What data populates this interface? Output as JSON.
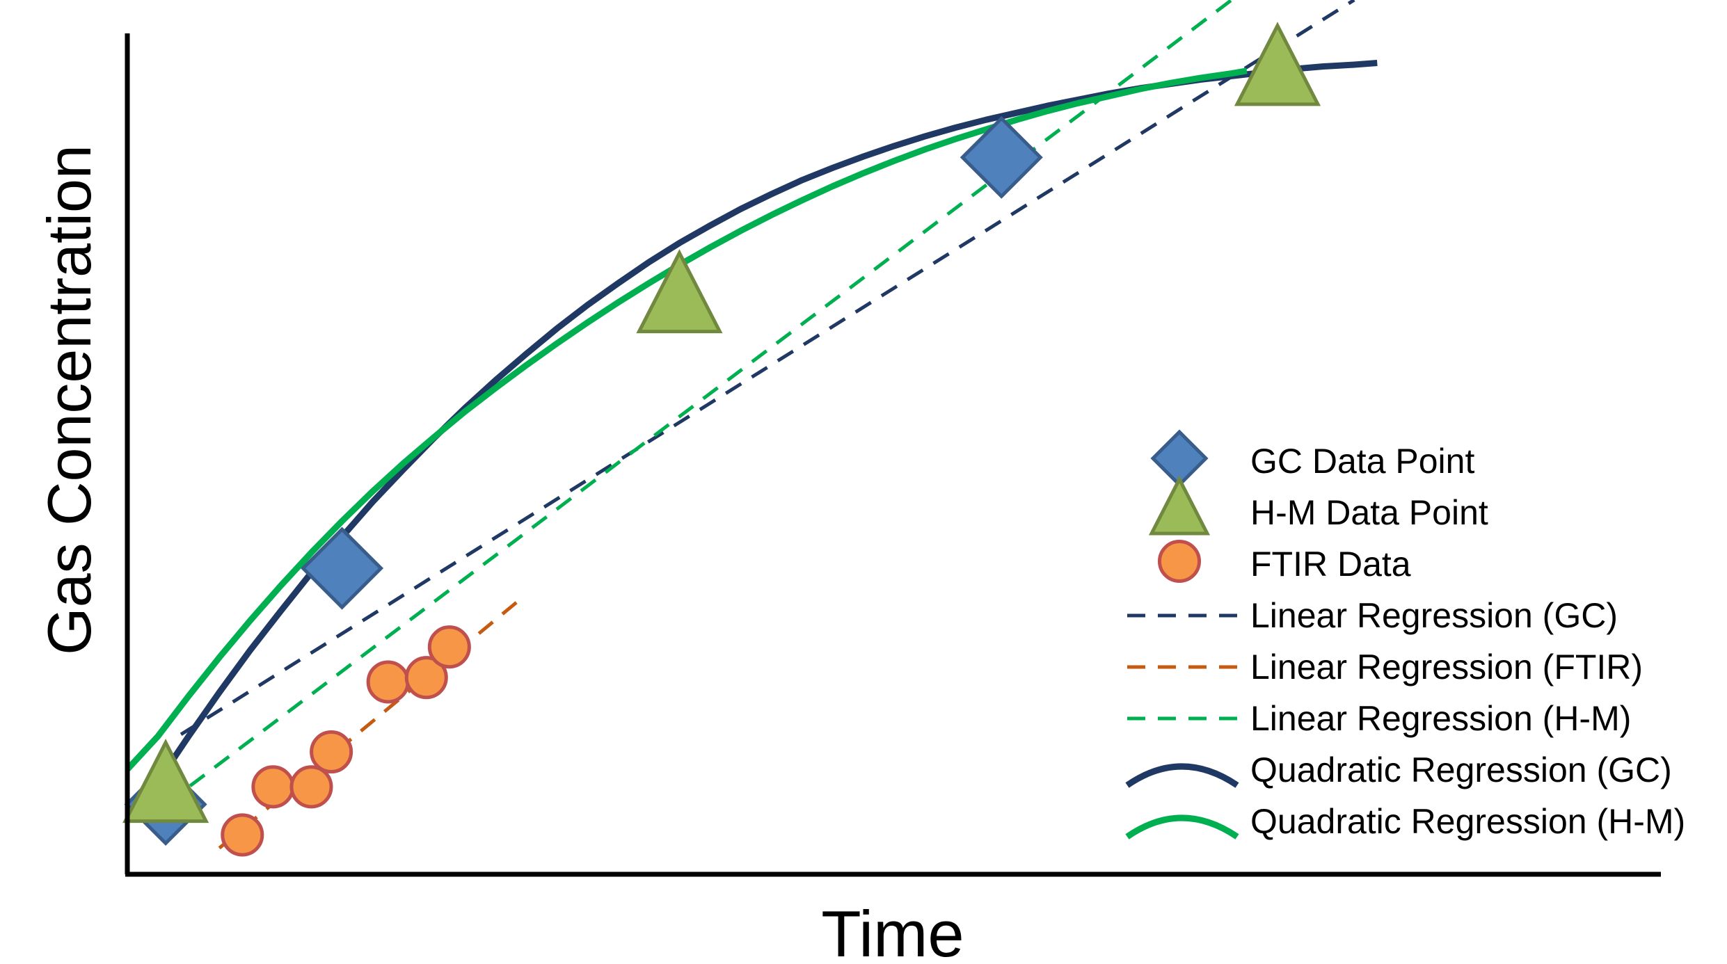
{
  "chart_data": {
    "type": "scatter",
    "xlabel": "Time",
    "ylabel": "Gas Concentration",
    "grid": false,
    "ticks": false,
    "legend_position": "lower-right",
    "xlim": [
      0,
      100
    ],
    "ylim": [
      0,
      100
    ],
    "background_color": "#ffffff",
    "series": [
      {
        "name": "GC Data Point",
        "kind": "points",
        "marker": "diamond",
        "color": "#4f81bd",
        "edge_color": "#385d8a",
        "points": [
          [
            2.5,
            8
          ],
          [
            14,
            35
          ],
          [
            57,
            82
          ]
        ]
      },
      {
        "name": "H-M Data Point",
        "kind": "points",
        "marker": "triangle",
        "color": "#9bbb59",
        "edge_color": "#71893f",
        "points": [
          [
            2.5,
            10
          ],
          [
            36,
            66
          ],
          [
            75,
            92
          ]
        ]
      },
      {
        "name": "FTIR Data",
        "kind": "points",
        "marker": "circle",
        "color": "#f79646",
        "edge_color": "#c0504d",
        "points": [
          [
            7.5,
            4.5
          ],
          [
            9.5,
            10
          ],
          [
            12,
            10
          ],
          [
            13.3,
            14
          ],
          [
            17,
            22
          ],
          [
            19.5,
            22.5
          ],
          [
            21,
            26
          ]
        ]
      },
      {
        "name": "Linear Regression (GC)",
        "kind": "line",
        "style": "dashed",
        "color": "#1f3864",
        "points": [
          [
            3.5,
            16
          ],
          [
            80,
            100
          ]
        ]
      },
      {
        "name": "Linear Regression (FTIR)",
        "kind": "line",
        "style": "dashed",
        "color": "#c55a11",
        "points": [
          [
            6,
            3
          ],
          [
            26,
            32
          ]
        ]
      },
      {
        "name": "Linear Regression (H-M)",
        "kind": "line",
        "style": "dashed",
        "color": "#00b050",
        "points": [
          [
            2.5,
            8
          ],
          [
            72,
            100
          ]
        ]
      },
      {
        "name": "Quadratic Regression (GC)",
        "kind": "line",
        "style": "solid",
        "color": "#1f3864",
        "points": [
          [
            0.5,
            7.5
          ],
          [
            2,
            10.6
          ],
          [
            4,
            15.8
          ],
          [
            6,
            20.8
          ],
          [
            8,
            25.6
          ],
          [
            10,
            30.1
          ],
          [
            12,
            34.5
          ],
          [
            14,
            38.6
          ],
          [
            16,
            42.6
          ],
          [
            18,
            46.3
          ],
          [
            20,
            49.9
          ],
          [
            22,
            53.3
          ],
          [
            24,
            56.5
          ],
          [
            26,
            59.5
          ],
          [
            28,
            62.4
          ],
          [
            30,
            65.1
          ],
          [
            32,
            67.6
          ],
          [
            34,
            70.0
          ],
          [
            36,
            72.2
          ],
          [
            38,
            74.2
          ],
          [
            40,
            76.1
          ],
          [
            42,
            77.8
          ],
          [
            44,
            79.4
          ],
          [
            46,
            80.8
          ],
          [
            48,
            82.1
          ],
          [
            50,
            83.3
          ],
          [
            52,
            84.4
          ],
          [
            54,
            85.4
          ],
          [
            56,
            86.3
          ],
          [
            58,
            87.1
          ],
          [
            60,
            87.9
          ],
          [
            62,
            88.6
          ],
          [
            64,
            89.3
          ],
          [
            66,
            89.9
          ],
          [
            68,
            90.4
          ],
          [
            70,
            90.9
          ],
          [
            72,
            91.3
          ],
          [
            74,
            91.7
          ],
          [
            76,
            92.1
          ],
          [
            78,
            92.4
          ],
          [
            80,
            92.6
          ],
          [
            81.5,
            92.8
          ]
        ]
      },
      {
        "name": "Quadratic Regression (H-M)",
        "kind": "line",
        "style": "solid",
        "color": "#00b050",
        "points": [
          [
            0,
            12
          ],
          [
            2,
            15.8
          ],
          [
            4,
            20.4
          ],
          [
            6,
            24.8
          ],
          [
            8,
            29.0
          ],
          [
            10,
            33.0
          ],
          [
            12,
            36.8
          ],
          [
            14,
            40.4
          ],
          [
            16,
            43.8
          ],
          [
            18,
            47.0
          ],
          [
            20,
            50.0
          ],
          [
            22,
            52.9
          ],
          [
            24,
            55.6
          ],
          [
            26,
            58.2
          ],
          [
            28,
            60.7
          ],
          [
            30,
            63.1
          ],
          [
            32,
            65.4
          ],
          [
            34,
            67.6
          ],
          [
            36,
            69.7
          ],
          [
            38,
            71.7
          ],
          [
            40,
            73.6
          ],
          [
            42,
            75.4
          ],
          [
            44,
            77.1
          ],
          [
            46,
            78.7
          ],
          [
            48,
            80.2
          ],
          [
            50,
            81.6
          ],
          [
            52,
            82.9
          ],
          [
            54,
            84.1
          ],
          [
            56,
            85.2
          ],
          [
            58,
            86.3
          ],
          [
            60,
            87.3
          ],
          [
            62,
            88.2
          ],
          [
            64,
            89.0
          ],
          [
            66,
            89.8
          ],
          [
            68,
            90.5
          ],
          [
            70,
            91.1
          ],
          [
            72,
            91.6
          ],
          [
            73,
            91.9
          ]
        ]
      }
    ]
  }
}
